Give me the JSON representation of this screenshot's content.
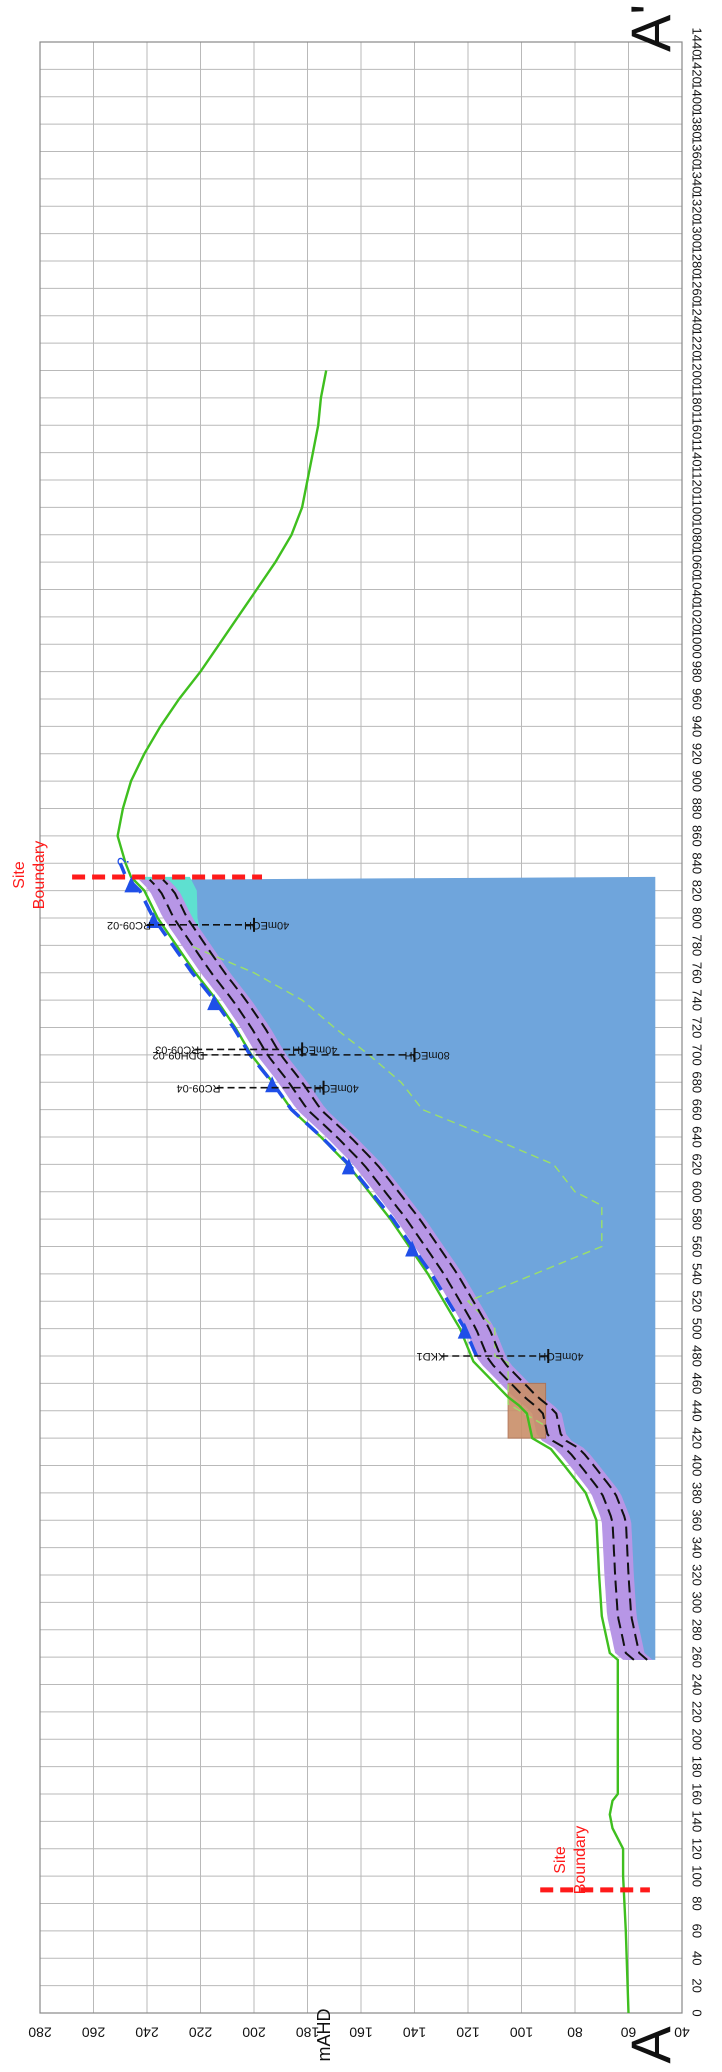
{
  "section": {
    "start_label": "A",
    "end_label": "A'",
    "elevation_axis_label": "mAHD",
    "site_boundary_label_lines": [
      "Site",
      "Boundary"
    ],
    "site_boundary_chainages": [
      90,
      830
    ],
    "query_mark": "?"
  },
  "chart_data": {
    "type": "line",
    "title": "",
    "x_axis": {
      "label": "",
      "range": [
        0,
        1440
      ],
      "ticks": [
        0,
        20,
        40,
        60,
        80,
        100,
        120,
        140,
        160,
        180,
        200,
        220,
        240,
        260,
        280,
        300,
        320,
        340,
        360,
        380,
        400,
        420,
        440,
        460,
        480,
        500,
        520,
        540,
        560,
        580,
        600,
        620,
        640,
        660,
        680,
        700,
        720,
        740,
        760,
        780,
        800,
        820,
        840,
        860,
        880,
        900,
        920,
        940,
        960,
        980,
        1000,
        1020,
        1040,
        1060,
        1080,
        1100,
        1120,
        1140,
        1160,
        1180,
        1200,
        1220,
        1240,
        1260,
        1280,
        1300,
        1320,
        1340,
        1360,
        1380,
        1400,
        1420,
        1440
      ],
      "tick_labels": [
        "0",
        "20",
        "40",
        "60",
        "80",
        "100",
        "120",
        "140",
        "160",
        "180",
        "200",
        "220",
        "240",
        "260",
        "280",
        "300",
        "320",
        "340",
        "360",
        "380",
        "400",
        "420",
        "440",
        "460",
        "480",
        "500",
        "520",
        "540",
        "560",
        "580",
        "600",
        "620",
        "640",
        "660",
        "680",
        "700",
        "720",
        "740",
        "760",
        "780",
        "800",
        "820",
        "840",
        "860",
        "880",
        "900",
        "920",
        "940",
        "960",
        "980",
        "1000",
        "1020",
        "1040",
        "1060",
        "1080",
        "1100",
        "1120",
        "1140",
        "1160",
        "1180",
        "1200",
        "1220",
        "1240",
        "1260",
        "1280",
        "1300",
        "1320",
        "1340",
        "1360",
        "1380",
        "1400",
        "1420",
        "1440"
      ]
    },
    "y_axis": {
      "label": "mAHD",
      "range": [
        40,
        280
      ],
      "ticks": [
        40,
        60,
        80,
        100,
        120,
        140,
        160,
        180,
        200,
        220,
        240,
        260,
        280
      ],
      "tick_labels": [
        "40",
        "60",
        "80",
        "100",
        "120",
        "140",
        "160",
        "180",
        "200",
        "220",
        "240",
        "260",
        "280"
      ]
    },
    "grid": true,
    "surface": {
      "name": "",
      "color": "#3fbf1f",
      "points": [
        [
          0,
          60
        ],
        [
          60,
          61
        ],
        [
          100,
          62
        ],
        [
          120,
          62
        ],
        [
          135,
          66
        ],
        [
          145,
          67
        ],
        [
          155,
          66
        ],
        [
          160,
          64
        ],
        [
          160,
          64
        ],
        [
          200,
          64
        ],
        [
          240,
          64
        ],
        [
          258,
          64
        ],
        [
          263,
          67
        ],
        [
          290,
          70
        ],
        [
          320,
          71
        ],
        [
          360,
          72
        ],
        [
          380,
          76
        ],
        [
          400,
          84
        ],
        [
          412,
          89
        ],
        [
          420,
          96
        ],
        [
          438,
          98
        ],
        [
          444,
          101
        ],
        [
          450,
          105
        ],
        [
          460,
          110
        ],
        [
          476,
          118
        ],
        [
          500,
          123
        ],
        [
          520,
          129
        ],
        [
          540,
          135
        ],
        [
          560,
          142
        ],
        [
          580,
          149
        ],
        [
          600,
          157
        ],
        [
          620,
          165
        ],
        [
          640,
          175
        ],
        [
          660,
          186
        ],
        [
          680,
          193
        ],
        [
          700,
          201
        ],
        [
          720,
          207
        ],
        [
          740,
          214
        ],
        [
          760,
          222
        ],
        [
          780,
          229
        ],
        [
          800,
          236
        ],
        [
          820,
          241
        ],
        [
          830,
          246
        ],
        [
          840,
          248
        ],
        [
          860,
          251
        ],
        [
          880,
          249
        ],
        [
          900,
          246
        ],
        [
          920,
          241
        ],
        [
          940,
          235
        ],
        [
          960,
          228
        ],
        [
          980,
          220
        ],
        [
          1000,
          213
        ],
        [
          1020,
          206
        ],
        [
          1040,
          199
        ],
        [
          1060,
          192
        ],
        [
          1080,
          186
        ],
        [
          1100,
          182
        ],
        [
          1120,
          180
        ],
        [
          1140,
          178
        ],
        [
          1160,
          176
        ],
        [
          1180,
          175
        ],
        [
          1200,
          173
        ]
      ]
    },
    "annotations": [
      {
        "text": "RC09-02"
      },
      {
        "text": "40mEOH"
      },
      {
        "text": "RC09-03"
      },
      {
        "text": "40mEOH"
      },
      {
        "text": "DDH09-02"
      },
      {
        "text": "80mEOH"
      },
      {
        "text": "RC09-04"
      },
      {
        "text": "40mEOH"
      },
      {
        "text": "KKD1"
      },
      {
        "text": "40mEOH"
      }
    ],
    "drillholes": [
      {
        "name": "RC09-02",
        "depth_label": "40mEOH",
        "chainage": 795,
        "collar": 240,
        "bottom": 200
      },
      {
        "name": "RC09-03",
        "depth_label": "40mEOH",
        "chainage": 704,
        "collar": 222,
        "bottom": 182
      },
      {
        "name": "DDH09-02",
        "depth_label": "80mEOH",
        "chainage": 700,
        "collar": 220,
        "bottom": 140
      },
      {
        "name": "RC09-04",
        "depth_label": "40mEOH",
        "chainage": 676,
        "collar": 214,
        "bottom": 174
      },
      {
        "name": "KKD1",
        "depth_label": "40mEOH",
        "chainage": 480,
        "collar": 130,
        "bottom": 90
      }
    ]
  }
}
